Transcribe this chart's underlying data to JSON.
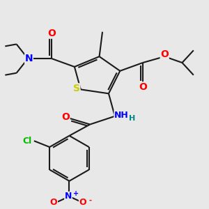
{
  "bg_color": "#e8e8e8",
  "bond_color": "#1a1a1a",
  "bond_width": 1.5,
  "dbo": 0.01,
  "atom_colors": {
    "O": "#ff0000",
    "N": "#0000ff",
    "S": "#cccc00",
    "Cl": "#00bb00",
    "C": "#1a1a1a",
    "H": "#008888"
  },
  "font_size": 9,
  "fig_size": [
    3.0,
    3.0
  ],
  "dpi": 100
}
